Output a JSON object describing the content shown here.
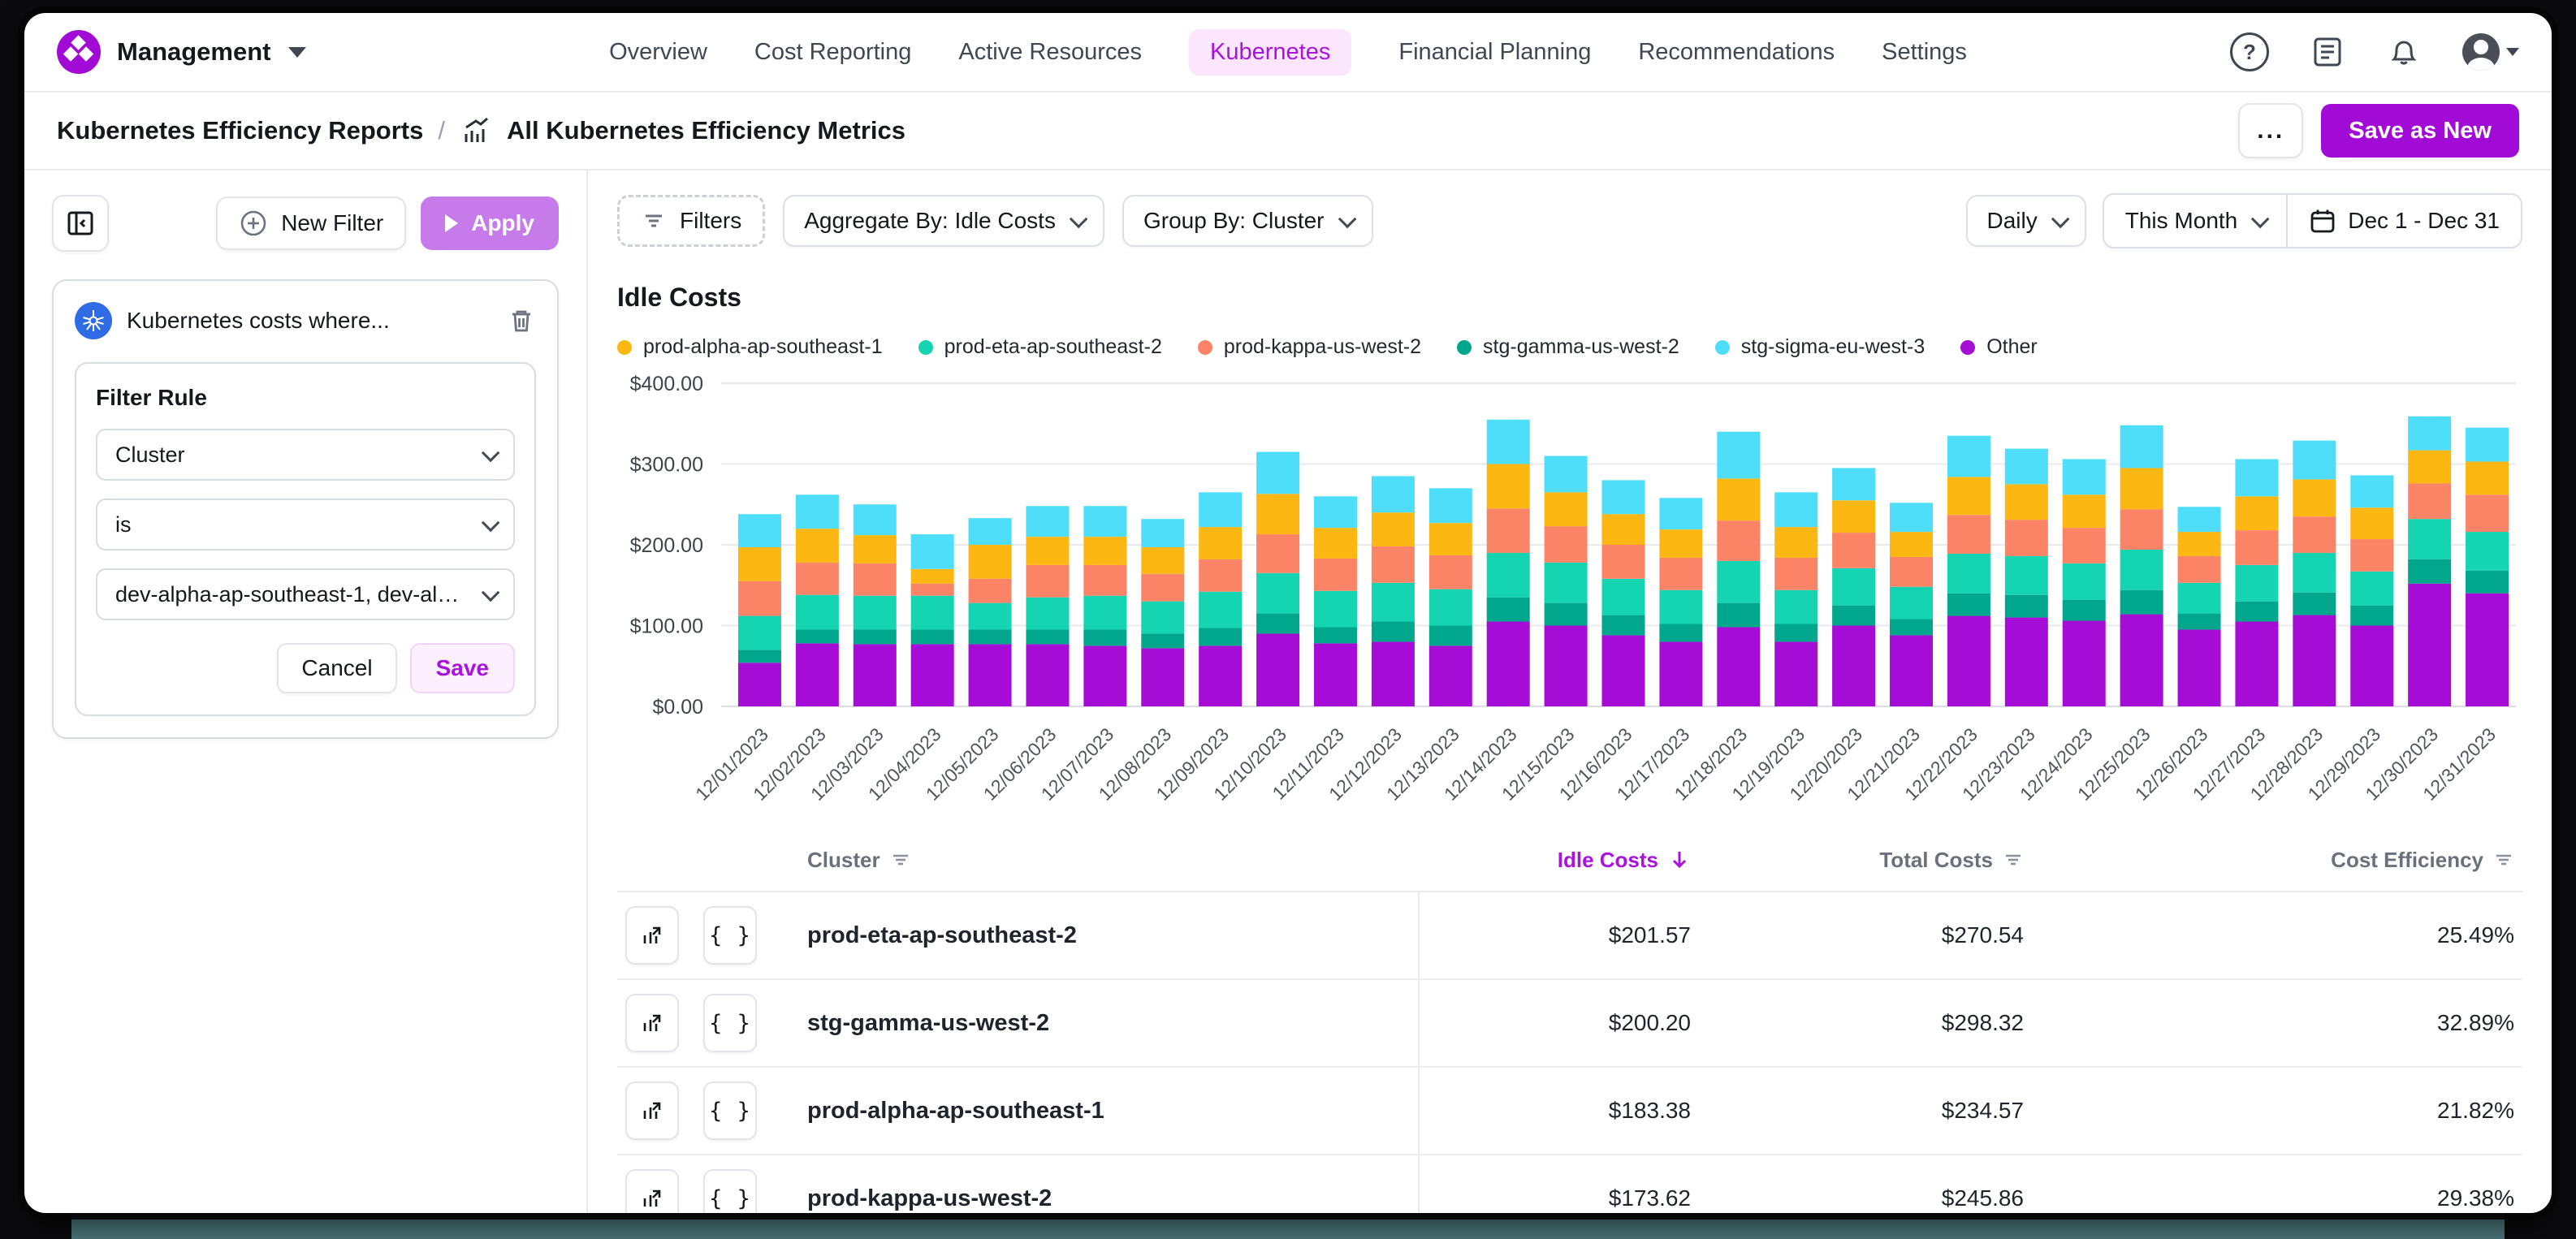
{
  "nav": {
    "brand_label": "Management",
    "items": [
      {
        "label": "Overview",
        "active": false
      },
      {
        "label": "Cost Reporting",
        "active": false
      },
      {
        "label": "Active Resources",
        "active": false
      },
      {
        "label": "Kubernetes",
        "active": true
      },
      {
        "label": "Financial Planning",
        "active": false
      },
      {
        "label": "Recommendations",
        "active": false
      },
      {
        "label": "Settings",
        "active": false
      }
    ],
    "right_icons": [
      "help",
      "changelog",
      "notifications",
      "account-menu"
    ]
  },
  "breadcrumb": {
    "parent": "Kubernetes Efficiency Reports",
    "separator": "/",
    "current": "All Kubernetes Efficiency Metrics",
    "more_label": "...",
    "save_label": "Save as New"
  },
  "filter_panel": {
    "new_filter_label": "New Filter",
    "apply_label": "Apply",
    "card_title": "Kubernetes costs where...",
    "rule_label": "Filter Rule",
    "selects": [
      {
        "value": "Cluster"
      },
      {
        "value": "is"
      },
      {
        "value": "dev-alpha-ap-southeast-1, dev-alpha-ap-so..."
      }
    ],
    "cancel_label": "Cancel",
    "save_label": "Save"
  },
  "toolbar": {
    "filters_label": "Filters",
    "aggregate_label": "Aggregate By: Idle Costs",
    "group_label": "Group By: Cluster",
    "granularity_label": "Daily",
    "period_label": "This Month",
    "range_label": "Dec 1 - Dec 31"
  },
  "chart_data": {
    "type": "bar",
    "stacked": true,
    "title": "Idle Costs",
    "xlabel": "",
    "ylabel": "",
    "ylim": [
      0,
      400
    ],
    "ytick_values": [
      0,
      100,
      200,
      300,
      400
    ],
    "yticks": [
      "$0.00",
      "$100.00",
      "$200.00",
      "$300.00",
      "$400.00"
    ],
    "grid": true,
    "legend_position": "top",
    "legend_order": [
      "prod-alpha-ap-southeast-1",
      "prod-eta-ap-southeast-2",
      "prod-kappa-us-west-2",
      "stg-gamma-us-west-2",
      "stg-sigma-eu-west-3",
      "Other"
    ],
    "categories": [
      "12/01/2023",
      "12/02/2023",
      "12/03/2023",
      "12/04/2023",
      "12/05/2023",
      "12/06/2023",
      "12/07/2023",
      "12/08/2023",
      "12/09/2023",
      "12/10/2023",
      "12/11/2023",
      "12/12/2023",
      "12/13/2023",
      "12/14/2023",
      "12/15/2023",
      "12/16/2023",
      "12/17/2023",
      "12/18/2023",
      "12/19/2023",
      "12/20/2023",
      "12/21/2023",
      "12/22/2023",
      "12/23/2023",
      "12/24/2023",
      "12/25/2023",
      "12/26/2023",
      "12/27/2023",
      "12/28/2023",
      "12/29/2023",
      "12/30/2023",
      "12/31/2023"
    ],
    "series": [
      {
        "name": "Other",
        "color": "#a50cd6",
        "values": [
          54,
          78,
          77,
          77,
          77,
          77,
          75,
          72,
          75,
          90,
          78,
          80,
          75,
          105,
          100,
          88,
          80,
          98,
          80,
          100,
          88,
          112,
          110,
          106,
          114,
          95,
          105,
          113,
          100,
          152,
          140
        ]
      },
      {
        "name": "stg-gamma-us-west-2",
        "color": "#00a78c",
        "values": [
          16,
          17,
          18,
          18,
          18,
          18,
          20,
          18,
          22,
          25,
          20,
          25,
          25,
          30,
          28,
          25,
          22,
          30,
          22,
          25,
          20,
          28,
          28,
          26,
          30,
          20,
          25,
          28,
          25,
          30,
          28
        ]
      },
      {
        "name": "prod-eta-ap-southeast-2",
        "color": "#15d4b2",
        "values": [
          42,
          43,
          42,
          42,
          33,
          40,
          42,
          40,
          45,
          50,
          45,
          48,
          45,
          55,
          50,
          45,
          42,
          52,
          42,
          46,
          40,
          49,
          48,
          45,
          50,
          38,
          45,
          49,
          42,
          50,
          48
        ]
      },
      {
        "name": "prod-kappa-us-west-2",
        "color": "#fb8467",
        "values": [
          43,
          40,
          40,
          15,
          30,
          40,
          38,
          34,
          40,
          48,
          40,
          45,
          42,
          55,
          45,
          42,
          40,
          50,
          40,
          44,
          37,
          48,
          45,
          44,
          50,
          33,
          43,
          45,
          40,
          44,
          46
        ]
      },
      {
        "name": "prod-alpha-ap-southeast-1",
        "color": "#fdb713",
        "values": [
          42,
          42,
          35,
          18,
          42,
          35,
          35,
          33,
          40,
          50,
          38,
          42,
          40,
          55,
          42,
          38,
          35,
          52,
          38,
          40,
          31,
          47,
          44,
          41,
          51,
          30,
          42,
          46,
          39,
          41,
          41
        ]
      },
      {
        "name": "stg-sigma-eu-west-3",
        "color": "#4fdefa",
        "values": [
          41,
          42,
          38,
          43,
          33,
          38,
          38,
          35,
          43,
          52,
          39,
          45,
          43,
          55,
          45,
          42,
          39,
          58,
          43,
          40,
          36,
          51,
          44,
          44,
          53,
          31,
          46,
          48,
          40,
          42,
          42
        ]
      }
    ]
  },
  "table": {
    "columns": [
      {
        "label": "Cluster",
        "align": "left",
        "accent": false,
        "sort": "none"
      },
      {
        "label": "Idle Costs",
        "align": "right",
        "accent": true,
        "sort": "desc"
      },
      {
        "label": "Total Costs",
        "align": "right",
        "accent": false,
        "sort": "none"
      },
      {
        "label": "Cost Efficiency",
        "align": "right",
        "accent": false,
        "sort": "none"
      }
    ],
    "rows": [
      {
        "cluster": "prod-eta-ap-southeast-2",
        "idle_costs": "$201.57",
        "total_costs": "$270.54",
        "cost_efficiency": "25.49%"
      },
      {
        "cluster": "stg-gamma-us-west-2",
        "idle_costs": "$200.20",
        "total_costs": "$298.32",
        "cost_efficiency": "32.89%"
      },
      {
        "cluster": "prod-alpha-ap-southeast-1",
        "idle_costs": "$183.38",
        "total_costs": "$234.57",
        "cost_efficiency": "21.82%"
      },
      {
        "cluster": "prod-kappa-us-west-2",
        "idle_costs": "$173.62",
        "total_costs": "$245.86",
        "cost_efficiency": "29.38%"
      }
    ]
  },
  "colors": {
    "brand_purple": "#a20bd6",
    "apply_purple": "#c77bea",
    "active_nav_text": "#a913dc",
    "active_nav_bg": "#fbe6fd",
    "kubernetes_blue": "#2f6be4",
    "grid_line": "#e9eaee",
    "bottom_strip": "#507e80"
  }
}
